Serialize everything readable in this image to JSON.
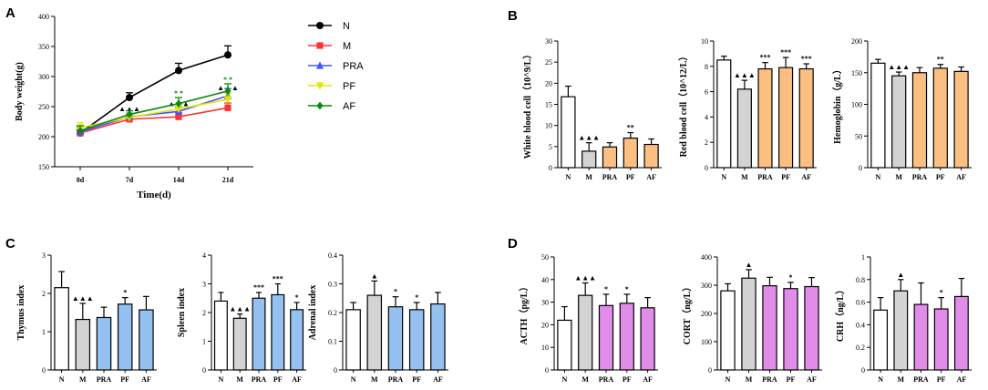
{
  "panel_labels": {
    "a": "A",
    "b": "B",
    "c": "C",
    "d": "D"
  },
  "chart_data": [
    {
      "id": "A",
      "type": "line",
      "title": "",
      "xlabel": "Time(d)",
      "ylabel": "Body weight(g)",
      "categories": [
        "0d",
        "7d",
        "14d",
        "21d"
      ],
      "ylim": [
        150,
        400
      ],
      "yticks": [
        150,
        200,
        250,
        300,
        350,
        400
      ],
      "series": [
        {
          "name": "N",
          "color": "#000000",
          "marker": "circle",
          "values": [
            206,
            265,
            310,
            336
          ],
          "errors": [
            4,
            8,
            12,
            15
          ],
          "marks": [
            "",
            "",
            "",
            ""
          ]
        },
        {
          "name": "M",
          "color": "#ff3333",
          "marker": "square",
          "values": [
            206,
            229,
            233,
            248
          ],
          "errors": [
            6,
            6,
            7,
            8
          ],
          "marks": [
            "",
            "",
            "",
            ""
          ]
        },
        {
          "name": "PRA",
          "color": "#3f56ff",
          "marker": "triangle",
          "values": [
            208,
            233,
            242,
            268
          ],
          "errors": [
            8,
            6,
            7,
            12
          ],
          "marks": [
            "",
            "▲▲▲",
            "▲▲▲",
            "▲▲▲"
          ]
        },
        {
          "name": "PF",
          "color": "#e5e500",
          "marker": "triangle-down",
          "values": [
            215,
            232,
            246,
            262
          ],
          "errors": [
            8,
            6,
            8,
            10
          ],
          "marks": [
            "",
            "",
            "",
            ""
          ]
        },
        {
          "name": "AF",
          "color": "#0a8a0a",
          "marker": "diamond",
          "values": [
            210,
            237,
            255,
            276
          ],
          "errors": [
            8,
            6,
            10,
            12
          ],
          "marks": [
            "",
            "",
            "* *",
            "* *"
          ]
        }
      ]
    },
    {
      "id": "B1",
      "type": "bar",
      "ylabel": "White blood cell（10^9/L）",
      "categories": [
        "N",
        "M",
        "PRA",
        "PF",
        "AF"
      ],
      "values": [
        16.8,
        3.9,
        4.9,
        7.0,
        5.5
      ],
      "errors": [
        2.5,
        2.0,
        1.0,
        1.3,
        1.3
      ],
      "marks": [
        "",
        "▲▲▲",
        "",
        "**",
        ""
      ],
      "ylim": [
        0,
        30
      ],
      "yticks": [
        0,
        5,
        10,
        15,
        20,
        25,
        30
      ],
      "colors": [
        "#ffffff",
        "#d3d3d3",
        "#fbc081",
        "#fbc081",
        "#fbc081"
      ]
    },
    {
      "id": "B2",
      "type": "bar",
      "ylabel": "Red blood cell（10^12/L）",
      "categories": [
        "N",
        "M",
        "PRA",
        "PF",
        "AF"
      ],
      "values": [
        8.5,
        6.2,
        7.8,
        7.9,
        7.8
      ],
      "errors": [
        0.3,
        0.7,
        0.5,
        0.8,
        0.4
      ],
      "marks": [
        "",
        "▲▲▲",
        "***",
        "***",
        "***"
      ],
      "ylim": [
        0,
        10
      ],
      "yticks": [
        0,
        2,
        4,
        6,
        8,
        10
      ],
      "colors": [
        "#ffffff",
        "#d3d3d3",
        "#fbc081",
        "#fbc081",
        "#fbc081"
      ]
    },
    {
      "id": "B3",
      "type": "bar",
      "ylabel": "Hemoglobin（g/L）",
      "categories": [
        "N",
        "M",
        "PRA",
        "PF",
        "AF"
      ],
      "values": [
        165,
        145,
        150,
        157,
        152
      ],
      "errors": [
        6,
        6,
        8,
        6,
        7
      ],
      "marks": [
        "",
        "▲▲▲",
        "",
        "**",
        ""
      ],
      "ylim": [
        0,
        200
      ],
      "yticks": [
        0,
        50,
        100,
        150,
        200
      ],
      "colors": [
        "#ffffff",
        "#d3d3d3",
        "#fbc081",
        "#fbc081",
        "#fbc081"
      ]
    },
    {
      "id": "C1",
      "type": "bar",
      "ylabel": "Thymus index",
      "categories": [
        "N",
        "M",
        "PRA",
        "PF",
        "AF"
      ],
      "values": [
        2.15,
        1.32,
        1.37,
        1.72,
        1.57
      ],
      "errors": [
        0.42,
        0.42,
        0.27,
        0.17,
        0.35
      ],
      "marks": [
        "",
        "▲▲▲",
        "",
        "*",
        ""
      ],
      "ylim": [
        0,
        3
      ],
      "yticks": [
        0,
        1,
        2,
        3
      ],
      "colors": [
        "#ffffff",
        "#d3d3d3",
        "#94c1ef",
        "#94c1ef",
        "#94c1ef"
      ]
    },
    {
      "id": "C2",
      "type": "bar",
      "ylabel": "Spleen index",
      "categories": [
        "N",
        "M",
        "PRA",
        "PF",
        "AF"
      ],
      "values": [
        2.4,
        1.8,
        2.5,
        2.62,
        2.1
      ],
      "errors": [
        0.3,
        0.15,
        0.2,
        0.38,
        0.25
      ],
      "marks": [
        "",
        "▲▲▲",
        "***",
        "***",
        "*"
      ],
      "ylim": [
        0,
        4
      ],
      "yticks": [
        0,
        1,
        2,
        3,
        4
      ],
      "colors": [
        "#ffffff",
        "#d3d3d3",
        "#94c1ef",
        "#94c1ef",
        "#94c1ef"
      ]
    },
    {
      "id": "C3",
      "type": "bar",
      "ylabel": "Adrenal index",
      "categories": [
        "N",
        "M",
        "PRA",
        "PF",
        "AF"
      ],
      "values": [
        0.21,
        0.26,
        0.22,
        0.21,
        0.23
      ],
      "errors": [
        0.025,
        0.05,
        0.035,
        0.025,
        0.04
      ],
      "marks": [
        "",
        "▲",
        "*",
        "*",
        ""
      ],
      "ylim": [
        0,
        0.4
      ],
      "yticks": [
        0.0,
        0.1,
        0.2,
        0.3,
        0.4
      ],
      "colors": [
        "#ffffff",
        "#d3d3d3",
        "#94c1ef",
        "#94c1ef",
        "#94c1ef"
      ]
    },
    {
      "id": "D1",
      "type": "bar",
      "ylabel": "ACTH（pg/L）",
      "categories": [
        "N",
        "M",
        "PRA",
        "PF",
        "AF"
      ],
      "values": [
        22,
        33,
        28.5,
        29.5,
        27.5
      ],
      "errors": [
        6,
        5.5,
        5,
        4,
        4.5
      ],
      "marks": [
        "",
        "▲▲▲",
        "*",
        "*",
        ""
      ],
      "ylim": [
        0,
        50
      ],
      "yticks": [
        0,
        10,
        20,
        30,
        40,
        50
      ],
      "colors": [
        "#ffffff",
        "#d3d3d3",
        "#e08ce8",
        "#e08ce8",
        "#e08ce8"
      ]
    },
    {
      "id": "D2",
      "type": "bar",
      "ylabel": "CORT（ng/L）",
      "categories": [
        "N",
        "M",
        "PRA",
        "PF",
        "AF"
      ],
      "values": [
        280,
        325,
        298,
        288,
        295
      ],
      "errors": [
        25,
        30,
        30,
        22,
        32
      ],
      "marks": [
        "",
        "▲",
        "",
        "*",
        ""
      ],
      "ylim": [
        0,
        400
      ],
      "yticks": [
        0,
        100,
        200,
        300,
        400
      ],
      "colors": [
        "#ffffff",
        "#d3d3d3",
        "#e08ce8",
        "#e08ce8",
        "#e08ce8"
      ]
    },
    {
      "id": "D3",
      "type": "bar",
      "ylabel": "CRH（ng/L）",
      "categories": [
        "N",
        "M",
        "PRA",
        "PF",
        "AF"
      ],
      "values": [
        0.53,
        0.7,
        0.58,
        0.54,
        0.65
      ],
      "errors": [
        0.11,
        0.1,
        0.19,
        0.1,
        0.16
      ],
      "marks": [
        "",
        "▲",
        "",
        "*",
        ""
      ],
      "ylim": [
        0,
        1.0
      ],
      "yticks": [
        0.0,
        0.2,
        0.4,
        0.6,
        0.8,
        1.0
      ],
      "colors": [
        "#ffffff",
        "#d3d3d3",
        "#e08ce8",
        "#e08ce8",
        "#e08ce8"
      ]
    }
  ]
}
